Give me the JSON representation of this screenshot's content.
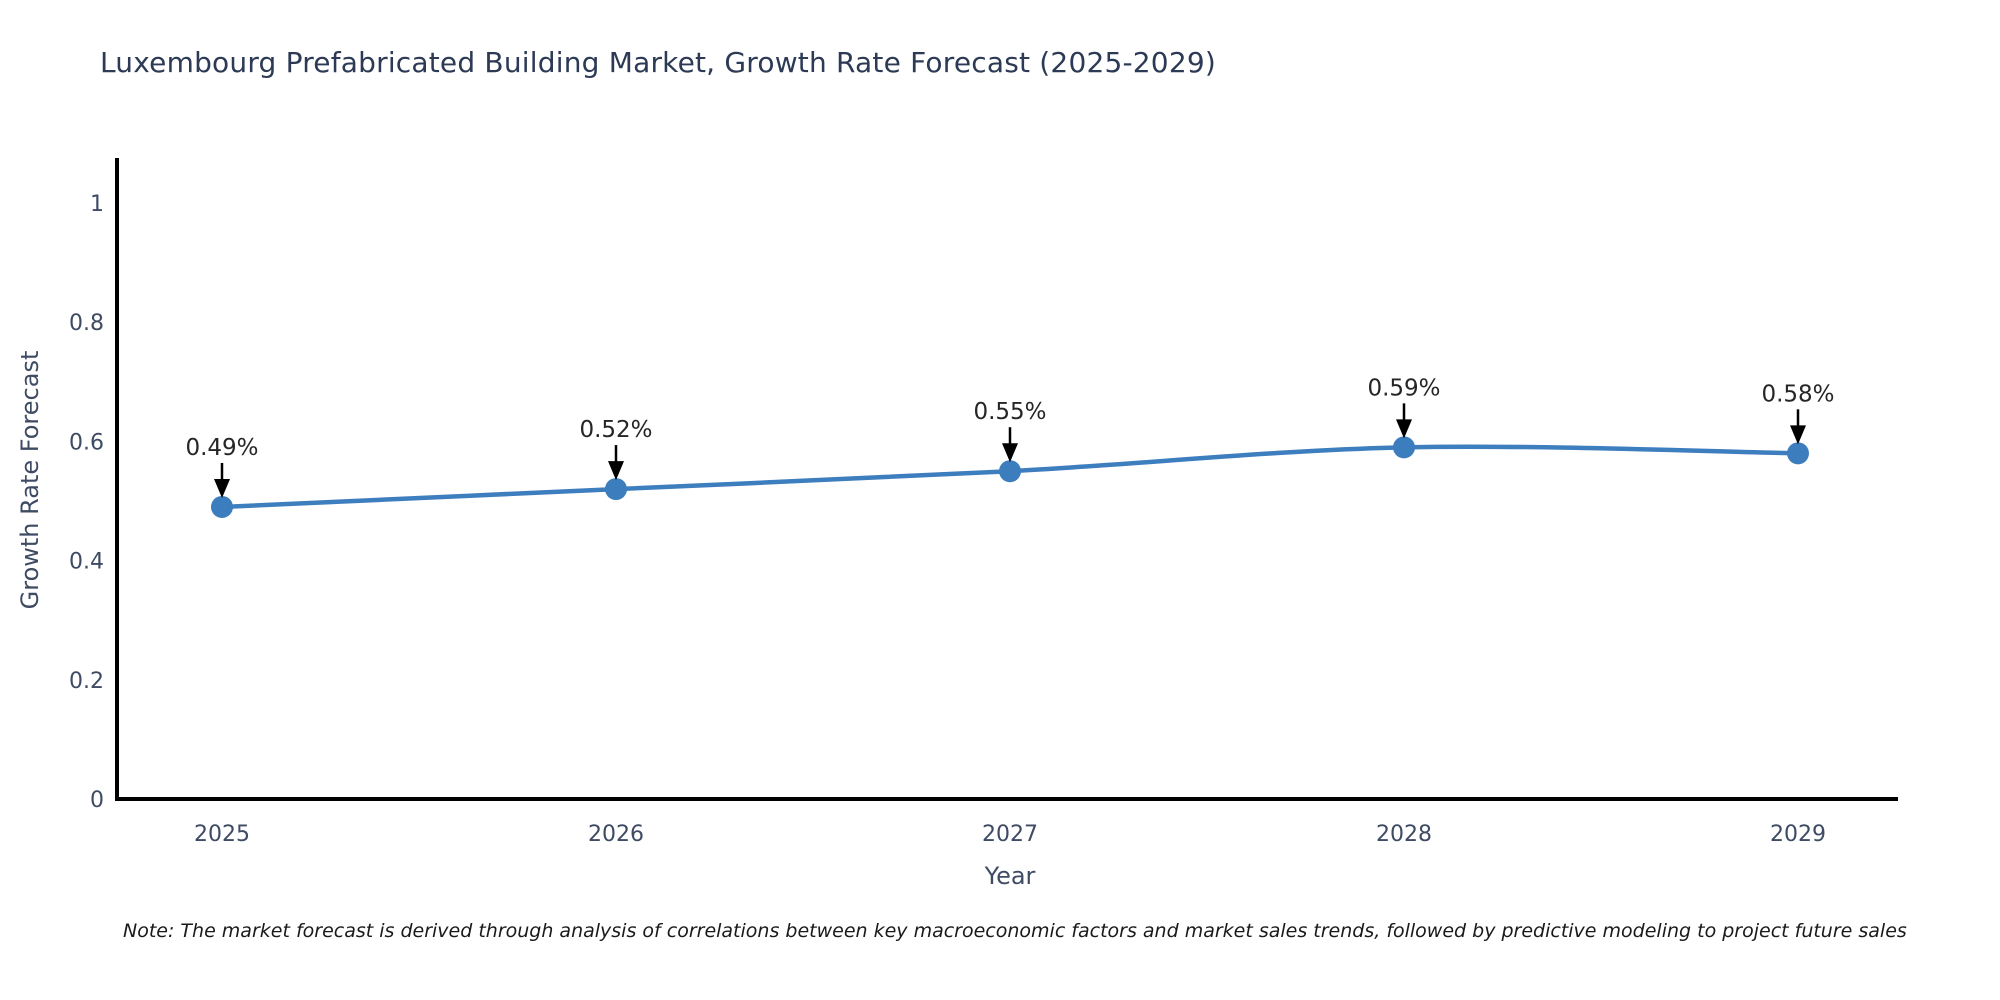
{
  "chart_data": {
    "type": "line",
    "title": "Luxembourg Prefabricated Building Market, Growth Rate Forecast (2025-2029)",
    "xlabel": "Year",
    "ylabel": "Growth Rate Forecast",
    "categories": [
      "2025",
      "2026",
      "2027",
      "2028",
      "2029"
    ],
    "series": [
      {
        "name": "Growth Rate Forecast",
        "values": [
          0.49,
          0.52,
          0.55,
          0.59,
          0.58
        ]
      }
    ],
    "point_labels": [
      "0.49%",
      "0.52%",
      "0.55%",
      "0.59%",
      "0.58%"
    ],
    "ylim": [
      0,
      1.083
    ],
    "yticks": [
      0,
      0.2,
      0.4,
      0.6,
      0.8,
      1
    ],
    "ytick_labels": [
      "0",
      "0.2",
      "0.4",
      "0.6",
      "0.8",
      "1"
    ],
    "grid": false,
    "legend": false,
    "marker": "circle",
    "annotation_arrows": true
  },
  "note": {
    "text": "Note: The market forecast is derived through analysis of correlations between key macroeconomic factors and market sales trends, followed by predictive modeling to project future sales"
  },
  "colors": {
    "line": "#3d7ebe",
    "marker": "#3c7dbd",
    "spine": "#000000",
    "title_text": "#2c3a55",
    "axis_text": "#3e4b63",
    "annotation_text": "#262626",
    "arrow": "#000000",
    "note_text": "#1a1a1a",
    "background": "#ffffff"
  }
}
